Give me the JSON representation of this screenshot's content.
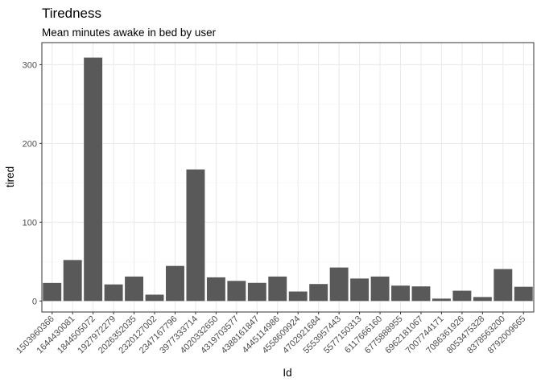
{
  "chart_data": {
    "type": "bar",
    "title": "Tiredness",
    "subtitle": "Mean minutes awake in bed by user",
    "xlabel": "Id",
    "ylabel": "tired",
    "categories": [
      "1503960366",
      "1644430081",
      "1844505072",
      "1927972279",
      "2026352035",
      "2320127002",
      "2347167796",
      "3977333714",
      "4020332650",
      "4319703577",
      "4388161847",
      "4445114986",
      "4558609924",
      "4702921684",
      "5553957443",
      "5577150313",
      "6117666160",
      "6775888955",
      "6962181067",
      "7007744171",
      "7086361926",
      "8053475328",
      "8378563200",
      "8792009665"
    ],
    "values": [
      22.9,
      52.0,
      309.0,
      21.0,
      31.0,
      8.0,
      44.5,
      167.0,
      30.0,
      25.5,
      23.0,
      31.0,
      12.0,
      21.5,
      42.5,
      28.5,
      31.0,
      19.5,
      18.5,
      3.0,
      13.0,
      5.0,
      40.5,
      18.0
    ],
    "ylim": [
      -14,
      328
    ],
    "yticks": [
      0,
      100,
      200,
      300
    ],
    "grid": true,
    "legend": "none",
    "colors": {
      "bar": "#595959",
      "grid_major": "#ebebeb",
      "grid_minor": "#f5f5f5",
      "panel_border": "#333333",
      "tick_text": "#4d4d4d",
      "text": "#000000"
    }
  }
}
